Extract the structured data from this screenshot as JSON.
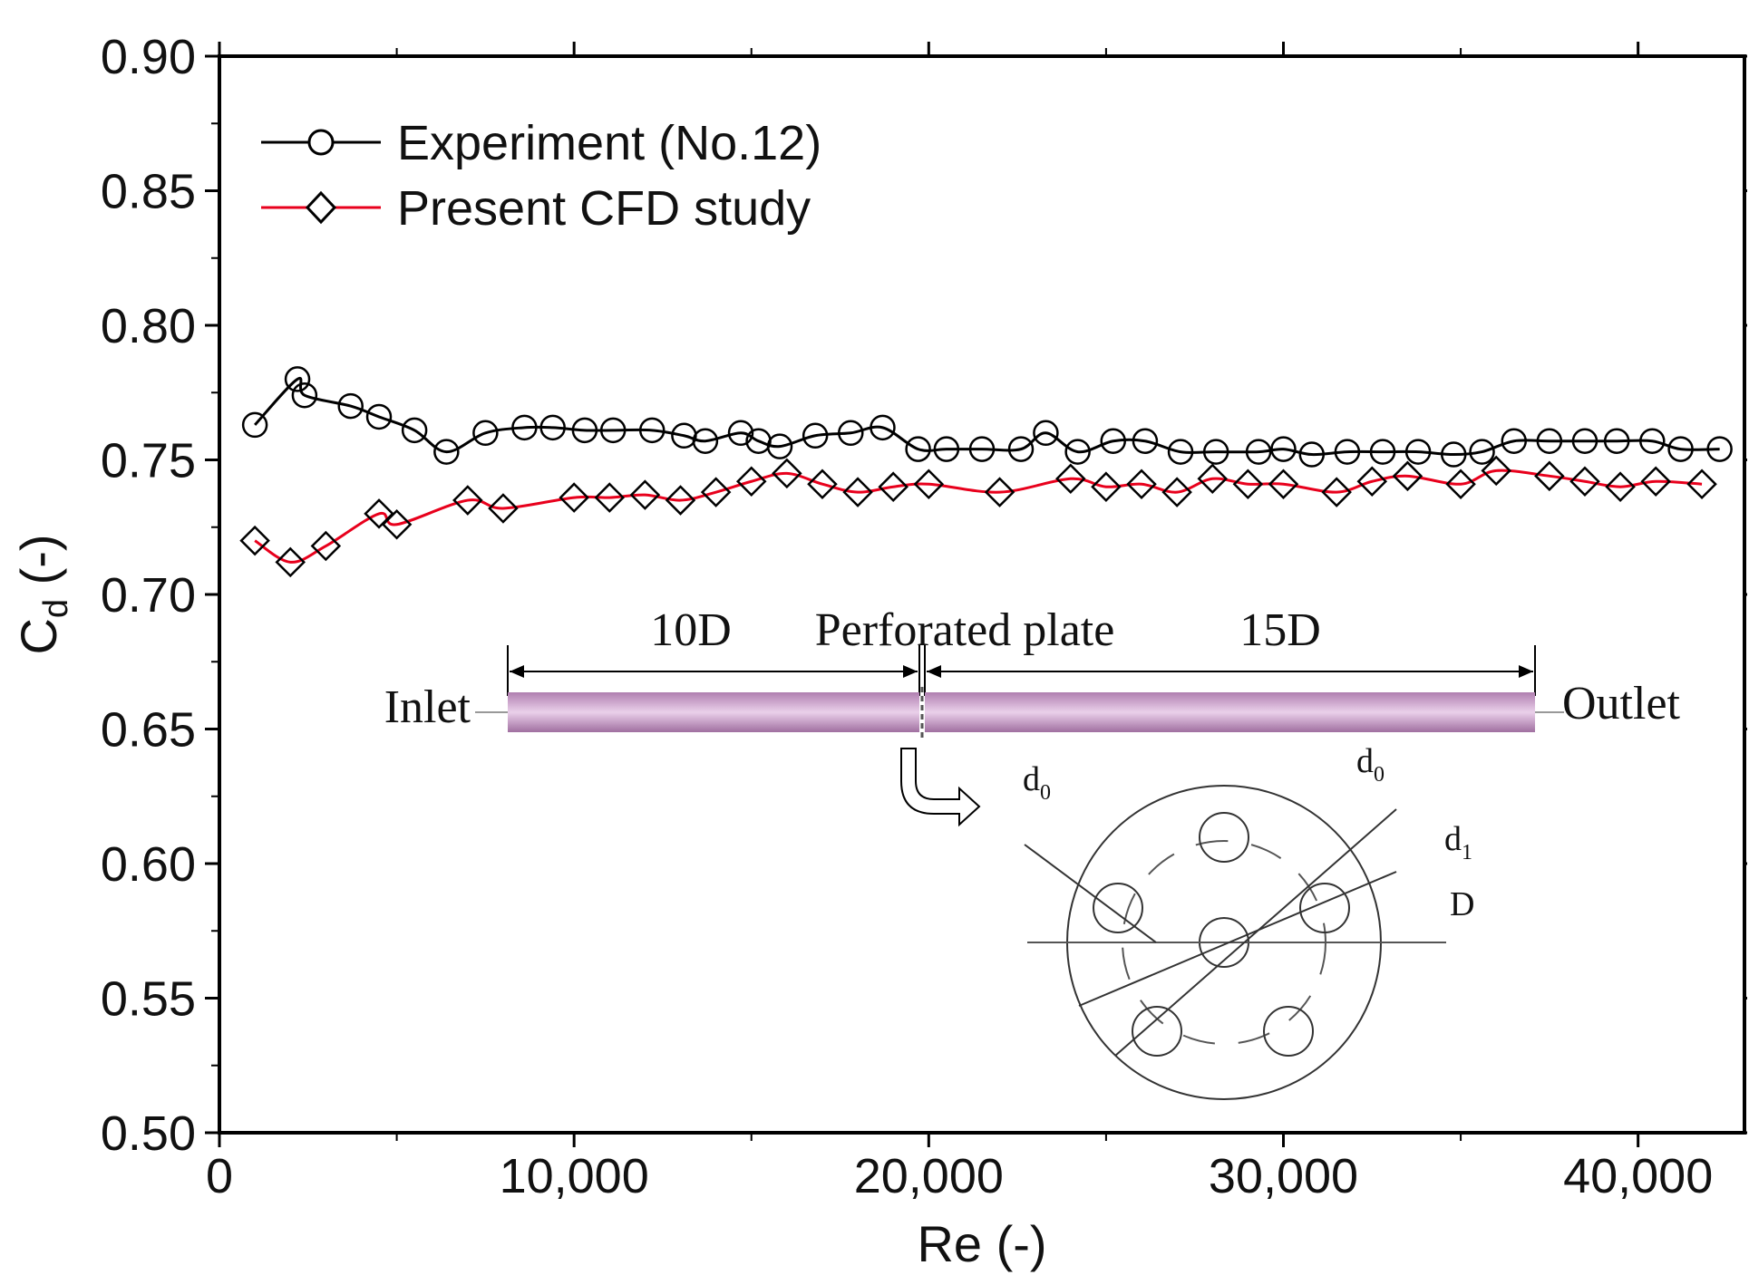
{
  "chart_data": {
    "type": "line",
    "xlabel": "Re (-)",
    "ylabel_main": "C",
    "ylabel_sub": "d",
    "ylabel_unit": " (-)",
    "xlim": [
      0,
      43000
    ],
    "ylim": [
      0.5,
      0.9
    ],
    "xticks": [
      0,
      10000,
      20000,
      30000,
      40000
    ],
    "xtick_labels": [
      "0",
      "10,000",
      "20,000",
      "30,000",
      "40,000"
    ],
    "yticks": [
      0.5,
      0.55,
      0.6,
      0.65,
      0.7,
      0.75,
      0.8,
      0.85,
      0.9
    ],
    "ytick_labels": [
      "0.50",
      "0.55",
      "0.60",
      "0.65",
      "0.70",
      "0.75",
      "0.80",
      "0.85",
      "0.90"
    ],
    "legend_position": "top-left",
    "series": [
      {
        "name": "Experiment (No.12)",
        "marker": "circle",
        "color": "#000000",
        "x": [
          1000,
          2200,
          2400,
          3700,
          4500,
          5500,
          6400,
          7500,
          8600,
          9400,
          10300,
          11100,
          12200,
          13100,
          13700,
          14700,
          15200,
          15800,
          16800,
          17800,
          18700,
          19700,
          20500,
          21500,
          22600,
          23300,
          24200,
          25200,
          26100,
          27100,
          28100,
          29300,
          30000,
          30800,
          31800,
          32800,
          33800,
          34800,
          35600,
          36500,
          37500,
          38500,
          39400,
          40400,
          41200,
          42300
        ],
        "y": [
          0.763,
          0.78,
          0.774,
          0.77,
          0.766,
          0.761,
          0.753,
          0.76,
          0.762,
          0.762,
          0.761,
          0.761,
          0.761,
          0.759,
          0.757,
          0.76,
          0.757,
          0.755,
          0.759,
          0.76,
          0.762,
          0.754,
          0.754,
          0.754,
          0.754,
          0.76,
          0.753,
          0.757,
          0.757,
          0.753,
          0.753,
          0.753,
          0.754,
          0.752,
          0.753,
          0.753,
          0.753,
          0.752,
          0.753,
          0.757,
          0.757,
          0.757,
          0.757,
          0.757,
          0.754,
          0.754
        ]
      },
      {
        "name": "Present CFD study",
        "marker": "diamond",
        "color": "#e8001c",
        "x": [
          1000,
          2000,
          3000,
          4500,
          5000,
          7000,
          8000,
          10000,
          11000,
          12000,
          13000,
          14000,
          15000,
          16000,
          17000,
          18000,
          19000,
          20000,
          22000,
          24000,
          25000,
          26000,
          27000,
          28000,
          29000,
          30000,
          31500,
          32500,
          33500,
          35000,
          36000,
          37500,
          38500,
          39500,
          40500,
          41800
        ],
        "y": [
          0.72,
          0.712,
          0.718,
          0.73,
          0.726,
          0.735,
          0.732,
          0.736,
          0.736,
          0.737,
          0.735,
          0.738,
          0.742,
          0.745,
          0.741,
          0.738,
          0.74,
          0.741,
          0.738,
          0.743,
          0.74,
          0.741,
          0.738,
          0.743,
          0.741,
          0.741,
          0.738,
          0.742,
          0.744,
          0.741,
          0.746,
          0.744,
          0.742,
          0.74,
          0.742,
          0.741
        ]
      }
    ],
    "inset": {
      "upstream_label": "10D",
      "plate_label": "Perforated plate",
      "downstream_label": "15D",
      "inlet_label": "Inlet",
      "outlet_label": "Outlet",
      "pipe_color": "#c99ac9",
      "d0_main": "d",
      "d0_sub": "0",
      "d1_main": "d",
      "d1_sub": "1",
      "D_label": "D"
    }
  }
}
